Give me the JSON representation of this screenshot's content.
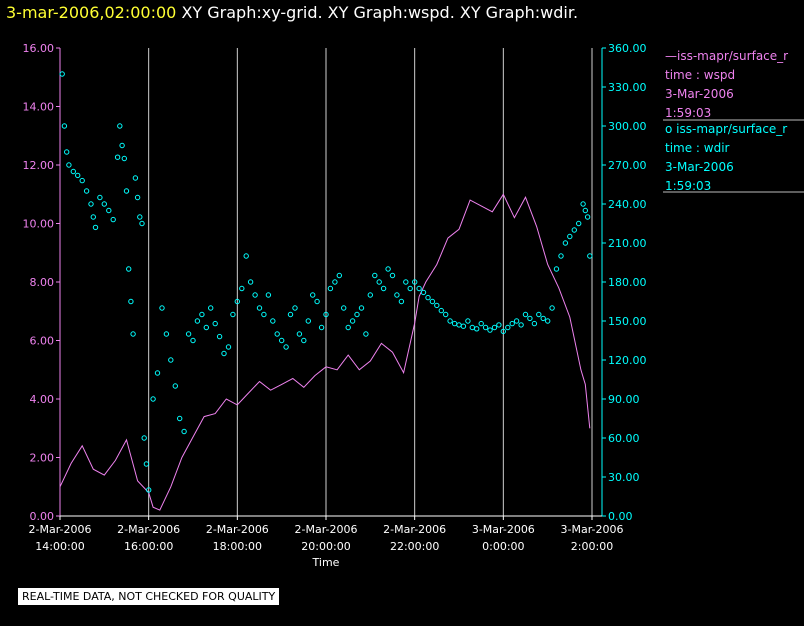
{
  "header": {
    "timestamp": "3-mar-2006,02:00:00",
    "graphs": "XY Graph:xy-grid.  XY Graph:wspd.  XY Graph:wdir."
  },
  "legend": {
    "wspd": {
      "source": "iss-mapr/surface_r",
      "time_label": "time : wspd",
      "date": "3-Mar-2006",
      "clock": "1:59:03",
      "color": "#ee82ee"
    },
    "wdir": {
      "source": "iss-mapr/surface_r",
      "time_label": "time : wdir",
      "date": "3-Mar-2006",
      "clock": "1:59:03",
      "color": "#00ffff"
    }
  },
  "footnote": "REAL-TIME DATA, NOT CHECKED FOR QUALITY",
  "chart_data": {
    "type": "line",
    "xlabel": "Time",
    "x_range": [
      "2-Mar-2006 14:00:00",
      "3-Mar-2006 02:00:00"
    ],
    "x_ticks": [
      {
        "hours": 0,
        "date": "2-Mar-2006",
        "time": "14:00:00"
      },
      {
        "hours": 2,
        "date": "2-Mar-2006",
        "time": "16:00:00"
      },
      {
        "hours": 4,
        "date": "2-Mar-2006",
        "time": "18:00:00"
      },
      {
        "hours": 6,
        "date": "2-Mar-2006",
        "time": "20:00:00"
      },
      {
        "hours": 8,
        "date": "2-Mar-2006",
        "time": "22:00:00"
      },
      {
        "hours": 10,
        "date": "3-Mar-2006",
        "time": "0:00:00"
      },
      {
        "hours": 12,
        "date": "3-Mar-2006",
        "time": "2:00:00"
      }
    ],
    "grid": true,
    "left_axis": {
      "ylim": [
        0,
        16
      ],
      "ticks": [
        "0.00",
        "2.00",
        "4.00",
        "6.00",
        "8.00",
        "10.00",
        "12.00",
        "14.00",
        "16.00"
      ],
      "color": "#ee82ee"
    },
    "right_axis": {
      "ylim": [
        0,
        360
      ],
      "ticks": [
        "0.00",
        "30.00",
        "60.00",
        "90.00",
        "120.00",
        "150.00",
        "180.00",
        "210.00",
        "240.00",
        "270.00",
        "300.00",
        "330.00",
        "360.00"
      ],
      "color": "#00ffff"
    },
    "series": [
      {
        "style": "line",
        "axis": "left",
        "color": "#ee82ee",
        "x_unit": "hours after 2-Mar-2006 14:00:00",
        "points": [
          [
            0.0,
            1.0
          ],
          [
            0.25,
            1.8
          ],
          [
            0.5,
            2.4
          ],
          [
            0.75,
            1.6
          ],
          [
            1.0,
            1.4
          ],
          [
            1.25,
            1.9
          ],
          [
            1.5,
            2.6
          ],
          [
            1.75,
            1.2
          ],
          [
            2.0,
            0.8
          ],
          [
            2.1,
            0.3
          ],
          [
            2.25,
            0.2
          ],
          [
            2.5,
            1.0
          ],
          [
            2.75,
            2.0
          ],
          [
            3.0,
            2.7
          ],
          [
            3.25,
            3.4
          ],
          [
            3.5,
            3.5
          ],
          [
            3.75,
            4.0
          ],
          [
            4.0,
            3.8
          ],
          [
            4.25,
            4.2
          ],
          [
            4.5,
            4.6
          ],
          [
            4.75,
            4.3
          ],
          [
            5.0,
            4.5
          ],
          [
            5.25,
            4.7
          ],
          [
            5.5,
            4.4
          ],
          [
            5.75,
            4.8
          ],
          [
            6.0,
            5.1
          ],
          [
            6.25,
            5.0
          ],
          [
            6.5,
            5.5
          ],
          [
            6.75,
            5.0
          ],
          [
            7.0,
            5.3
          ],
          [
            7.25,
            5.9
          ],
          [
            7.5,
            5.6
          ],
          [
            7.75,
            4.9
          ],
          [
            8.0,
            6.6
          ],
          [
            8.1,
            7.5
          ],
          [
            8.25,
            8.0
          ],
          [
            8.5,
            8.6
          ],
          [
            8.75,
            9.5
          ],
          [
            9.0,
            9.8
          ],
          [
            9.25,
            10.8
          ],
          [
            9.5,
            10.6
          ],
          [
            9.75,
            10.4
          ],
          [
            10.0,
            11.0
          ],
          [
            10.25,
            10.2
          ],
          [
            10.5,
            10.9
          ],
          [
            10.75,
            9.9
          ],
          [
            11.0,
            8.6
          ],
          [
            11.25,
            7.8
          ],
          [
            11.5,
            6.8
          ],
          [
            11.75,
            5.0
          ],
          [
            11.85,
            4.5
          ],
          [
            11.95,
            3.0
          ]
        ]
      },
      {
        "style": "scatter",
        "axis": "right",
        "color": "#00ffff",
        "x_unit": "hours after 2-Mar-2006 14:00:00",
        "points": [
          [
            0.05,
            340
          ],
          [
            0.1,
            300
          ],
          [
            0.15,
            280
          ],
          [
            0.2,
            270
          ],
          [
            0.3,
            265
          ],
          [
            0.4,
            262
          ],
          [
            0.5,
            258
          ],
          [
            0.6,
            250
          ],
          [
            0.7,
            240
          ],
          [
            0.75,
            230
          ],
          [
            0.8,
            222
          ],
          [
            0.9,
            245
          ],
          [
            1.0,
            240
          ],
          [
            1.1,
            235
          ],
          [
            1.2,
            228
          ],
          [
            1.3,
            276
          ],
          [
            1.35,
            300
          ],
          [
            1.4,
            285
          ],
          [
            1.45,
            275
          ],
          [
            1.5,
            250
          ],
          [
            1.55,
            190
          ],
          [
            1.6,
            165
          ],
          [
            1.65,
            140
          ],
          [
            1.7,
            260
          ],
          [
            1.75,
            245
          ],
          [
            1.8,
            230
          ],
          [
            1.85,
            225
          ],
          [
            1.9,
            60
          ],
          [
            1.95,
            40
          ],
          [
            2.0,
            20
          ],
          [
            2.1,
            90
          ],
          [
            2.2,
            110
          ],
          [
            2.3,
            160
          ],
          [
            2.4,
            140
          ],
          [
            2.5,
            120
          ],
          [
            2.6,
            100
          ],
          [
            2.7,
            75
          ],
          [
            2.8,
            65
          ],
          [
            2.9,
            140
          ],
          [
            3.0,
            135
          ],
          [
            3.1,
            150
          ],
          [
            3.2,
            155
          ],
          [
            3.3,
            145
          ],
          [
            3.4,
            160
          ],
          [
            3.5,
            148
          ],
          [
            3.6,
            138
          ],
          [
            3.7,
            125
          ],
          [
            3.8,
            130
          ],
          [
            3.9,
            155
          ],
          [
            4.0,
            165
          ],
          [
            4.1,
            175
          ],
          [
            4.2,
            200
          ],
          [
            4.3,
            180
          ],
          [
            4.4,
            170
          ],
          [
            4.5,
            160
          ],
          [
            4.6,
            155
          ],
          [
            4.7,
            170
          ],
          [
            4.8,
            150
          ],
          [
            4.9,
            140
          ],
          [
            5.0,
            135
          ],
          [
            5.1,
            130
          ],
          [
            5.2,
            155
          ],
          [
            5.3,
            160
          ],
          [
            5.4,
            140
          ],
          [
            5.5,
            135
          ],
          [
            5.6,
            150
          ],
          [
            5.7,
            170
          ],
          [
            5.8,
            165
          ],
          [
            5.9,
            145
          ],
          [
            6.0,
            155
          ],
          [
            6.1,
            175
          ],
          [
            6.2,
            180
          ],
          [
            6.3,
            185
          ],
          [
            6.4,
            160
          ],
          [
            6.5,
            145
          ],
          [
            6.6,
            150
          ],
          [
            6.7,
            155
          ],
          [
            6.8,
            160
          ],
          [
            6.9,
            140
          ],
          [
            7.0,
            170
          ],
          [
            7.1,
            185
          ],
          [
            7.2,
            180
          ],
          [
            7.3,
            175
          ],
          [
            7.4,
            190
          ],
          [
            7.5,
            185
          ],
          [
            7.6,
            170
          ],
          [
            7.7,
            165
          ],
          [
            7.8,
            180
          ],
          [
            7.9,
            175
          ],
          [
            8.0,
            180
          ],
          [
            8.1,
            175
          ],
          [
            8.2,
            172
          ],
          [
            8.3,
            168
          ],
          [
            8.4,
            165
          ],
          [
            8.5,
            162
          ],
          [
            8.6,
            158
          ],
          [
            8.7,
            155
          ],
          [
            8.8,
            150
          ],
          [
            8.9,
            148
          ],
          [
            9.0,
            147
          ],
          [
            9.1,
            146
          ],
          [
            9.2,
            150
          ],
          [
            9.3,
            145
          ],
          [
            9.4,
            144
          ],
          [
            9.5,
            148
          ],
          [
            9.6,
            145
          ],
          [
            9.7,
            143
          ],
          [
            9.8,
            145
          ],
          [
            9.9,
            147
          ],
          [
            10.0,
            142
          ],
          [
            10.1,
            145
          ],
          [
            10.2,
            148
          ],
          [
            10.3,
            150
          ],
          [
            10.4,
            147
          ],
          [
            10.5,
            155
          ],
          [
            10.6,
            152
          ],
          [
            10.7,
            148
          ],
          [
            10.8,
            155
          ],
          [
            10.9,
            152
          ],
          [
            11.0,
            150
          ],
          [
            11.1,
            160
          ],
          [
            11.2,
            190
          ],
          [
            11.3,
            200
          ],
          [
            11.4,
            210
          ],
          [
            11.5,
            215
          ],
          [
            11.6,
            220
          ],
          [
            11.7,
            225
          ],
          [
            11.8,
            240
          ],
          [
            11.85,
            235
          ],
          [
            11.9,
            230
          ],
          [
            11.95,
            200
          ]
        ]
      }
    ]
  }
}
